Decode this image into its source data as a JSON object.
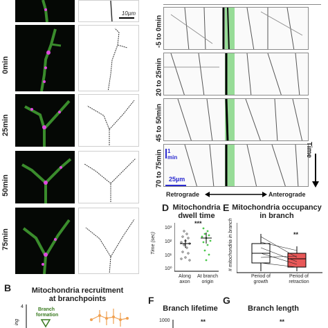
{
  "panelA": {
    "scale_bar": "10µm",
    "timepoints": [
      "0min",
      "25min",
      "50min",
      "75min"
    ]
  },
  "kymo": {
    "labels": [
      "-5 to 0min",
      "20 to 25min",
      "45 to 50min",
      "70 to 75min"
    ],
    "time_axis": "Time",
    "scale_time": "1 min",
    "scale_space": "25µm",
    "retrograde": "Retrograde",
    "anterograde": "Anterograde"
  },
  "panelB": {
    "letter": "B",
    "title_line1": "Mitochondria recruitment",
    "title_line2": "at branchpoints",
    "annotation_line1": "Branch",
    "annotation_line2": "formation",
    "ytick": "4"
  },
  "panelD": {
    "letter": "D",
    "title_line1": "Mitochondria",
    "title_line2": "dwell time",
    "ylabel": "Time (sec)",
    "yticks": [
      "10³",
      "10²",
      "10¹",
      "10⁰"
    ],
    "categories": [
      "Along axon",
      "At branch origin"
    ],
    "significance": "***"
  },
  "panelE": {
    "letter": "E",
    "title_line1": "Mitochondria occupancy",
    "title_line2": "in branch",
    "ylabel": "# mitochondria in branch",
    "categories": [
      "Period of growth",
      "Period of retraction"
    ],
    "significance": "**"
  },
  "panelF": {
    "letter": "F",
    "title": "Branch lifetime",
    "ytick": "1000",
    "significance": "**"
  },
  "panelG": {
    "letter": "G",
    "title": "Branch length",
    "significance": "**"
  },
  "colors": {
    "green_channel": "#3a8c2c",
    "magenta_channel": "#e048e0",
    "kymo_highlight": "#7ed47e",
    "growth_box": "#ffffff",
    "retraction_box": "#e85858",
    "scatter_green": "#4cc84c",
    "orange_series": "#f0a050",
    "annotation_green": "#3a7a20",
    "scale_blue": "#2a2ad0"
  }
}
